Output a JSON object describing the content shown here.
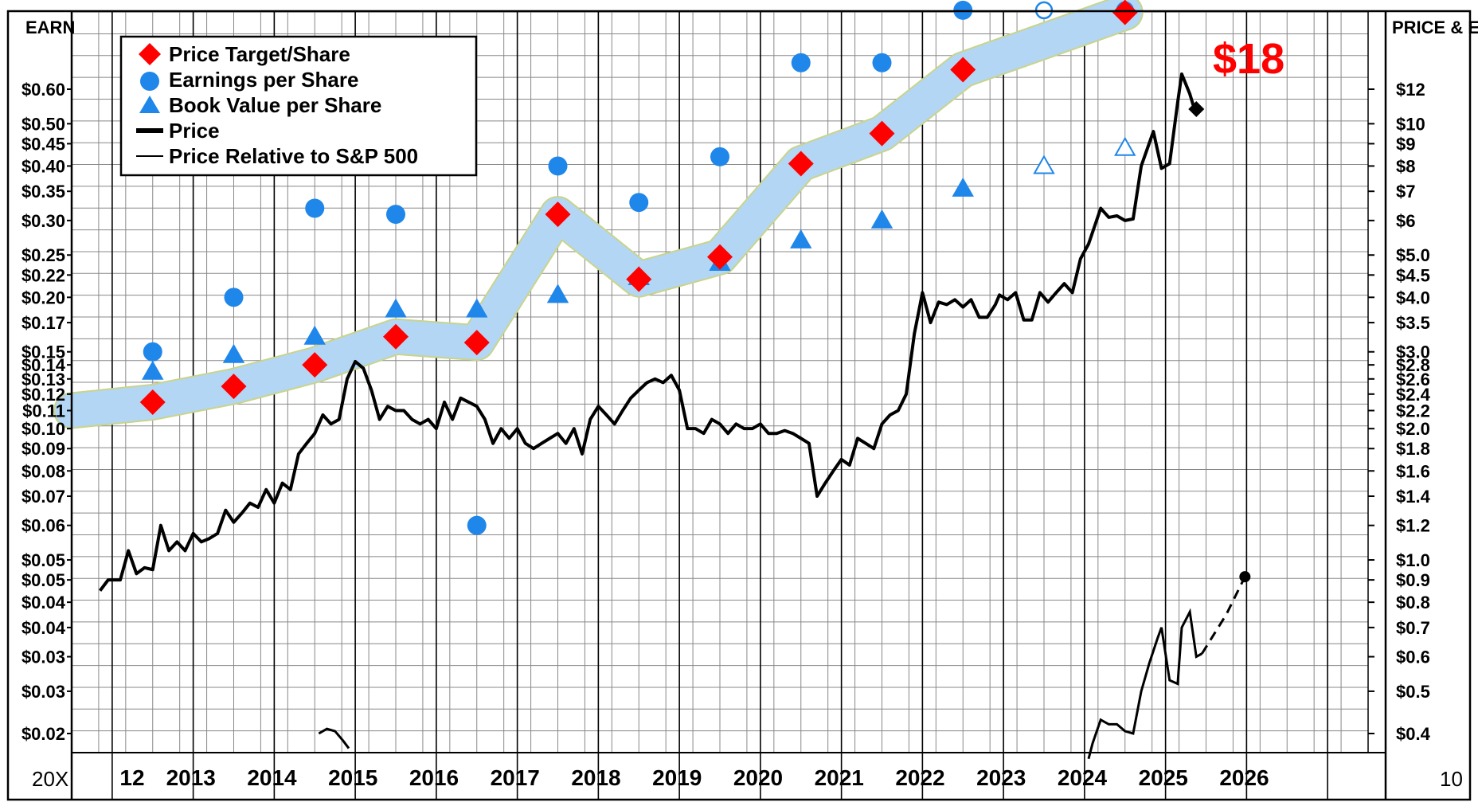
{
  "chart_data": {
    "type": "line",
    "left_axis_title": "EARN",
    "right_axis_title": "PRICE & EQUITY",
    "corner_left": "20X",
    "corner_right": "10",
    "target_label": "$18",
    "x_labels": [
      "12",
      "2013",
      "2014",
      "2015",
      "2016",
      "2017",
      "2018",
      "2019",
      "2020",
      "2021",
      "2022",
      "2023",
      "2024",
      "2025",
      "2026"
    ],
    "left_ticks": [
      {
        "label": "$0.60",
        "v": 0.6
      },
      {
        "label": "$0.50",
        "v": 0.5
      },
      {
        "label": "$0.45",
        "v": 0.45
      },
      {
        "label": "$0.40",
        "v": 0.4
      },
      {
        "label": "$0.35",
        "v": 0.35
      },
      {
        "label": "$0.30",
        "v": 0.3
      },
      {
        "label": "$0.25",
        "v": 0.25
      },
      {
        "label": "$0.22",
        "v": 0.225
      },
      {
        "label": "$0.20",
        "v": 0.2
      },
      {
        "label": "$0.17",
        "v": 0.175
      },
      {
        "label": "$0.15",
        "v": 0.15
      },
      {
        "label": "$0.14",
        "v": 0.14
      },
      {
        "label": "$0.13",
        "v": 0.13
      },
      {
        "label": "$0.12",
        "v": 0.12
      },
      {
        "label": "$0.11",
        "v": 0.11
      },
      {
        "label": "$0.10",
        "v": 0.1
      },
      {
        "label": "$0.09",
        "v": 0.09
      },
      {
        "label": "$0.08",
        "v": 0.08
      },
      {
        "label": "$0.07",
        "v": 0.07
      },
      {
        "label": "$0.06",
        "v": 0.06
      },
      {
        "label": "$0.05",
        "v": 0.05
      },
      {
        "label": "$0.05",
        "v": 0.045
      },
      {
        "label": "$0.04",
        "v": 0.04
      },
      {
        "label": "$0.04",
        "v": 0.035
      },
      {
        "label": "$0.03",
        "v": 0.03
      },
      {
        "label": "$0.03",
        "v": 0.025
      },
      {
        "label": "$0.02",
        "v": 0.02
      }
    ],
    "right_ticks": [
      {
        "label": "$12",
        "v": 12
      },
      {
        "label": "$10",
        "v": 10
      },
      {
        "label": "$9",
        "v": 9
      },
      {
        "label": "$8",
        "v": 8
      },
      {
        "label": "$7",
        "v": 7
      },
      {
        "label": "$6",
        "v": 6
      },
      {
        "label": "$5.0",
        "v": 5.0
      },
      {
        "label": "$4.5",
        "v": 4.5
      },
      {
        "label": "$4.0",
        "v": 4.0
      },
      {
        "label": "$3.5",
        "v": 3.5
      },
      {
        "label": "$3.0",
        "v": 3.0
      },
      {
        "label": "$2.8",
        "v": 2.8
      },
      {
        "label": "$2.6",
        "v": 2.6
      },
      {
        "label": "$2.4",
        "v": 2.4
      },
      {
        "label": "$2.2",
        "v": 2.2
      },
      {
        "label": "$2.0",
        "v": 2.0
      },
      {
        "label": "$1.8",
        "v": 1.8
      },
      {
        "label": "$1.6",
        "v": 1.6
      },
      {
        "label": "$1.4",
        "v": 1.4
      },
      {
        "label": "$1.2",
        "v": 1.2
      },
      {
        "label": "$1.0",
        "v": 1.0
      },
      {
        "label": "$0.9",
        "v": 0.9
      },
      {
        "label": "$0.8",
        "v": 0.8
      },
      {
        "label": "$0.7",
        "v": 0.7
      },
      {
        "label": "$0.6",
        "v": 0.6
      },
      {
        "label": "$0.5",
        "v": 0.5
      },
      {
        "label": "$0.4",
        "v": 0.4
      }
    ],
    "legend": [
      {
        "label": "Price Target/Share",
        "marker": "diamond"
      },
      {
        "label": "Earnings per Share",
        "marker": "circle"
      },
      {
        "label": "Book Value per Share",
        "marker": "triangle"
      },
      {
        "label": "Price",
        "marker": "thick-line"
      },
      {
        "label": "Price Relative to S&P 500",
        "marker": "thin-line"
      }
    ],
    "colors": {
      "target": "#ff0000",
      "eps": "#1f86ea",
      "band": "#b3d6f5",
      "band_edge": "#c9d48a",
      "price": "#000000",
      "grid": "#888888",
      "label_red": "#ff0000"
    },
    "band": [
      {
        "x": 2011.5,
        "v": 2.2
      },
      {
        "x": 2012.5,
        "v": 2.3
      },
      {
        "x": 2013.5,
        "v": 2.5
      },
      {
        "x": 2014.5,
        "v": 2.8
      },
      {
        "x": 2015.5,
        "v": 3.25
      },
      {
        "x": 2016.5,
        "v": 3.15
      },
      {
        "x": 2017.5,
        "v": 6.2
      },
      {
        "x": 2018.5,
        "v": 4.4
      },
      {
        "x": 2019.5,
        "v": 4.95
      },
      {
        "x": 2020.5,
        "v": 8.1
      },
      {
        "x": 2021.5,
        "v": 9.5
      },
      {
        "x": 2022.5,
        "v": 13.3
      },
      {
        "x": 2024.5,
        "v": 18.0
      }
    ],
    "price_target": [
      {
        "x": 2012.5,
        "v": 2.3
      },
      {
        "x": 2013.5,
        "v": 2.5
      },
      {
        "x": 2014.5,
        "v": 2.8
      },
      {
        "x": 2015.5,
        "v": 3.25
      },
      {
        "x": 2016.5,
        "v": 3.15
      },
      {
        "x": 2017.5,
        "v": 6.2
      },
      {
        "x": 2018.5,
        "v": 4.4
      },
      {
        "x": 2019.5,
        "v": 4.95
      },
      {
        "x": 2020.5,
        "v": 8.1
      },
      {
        "x": 2021.5,
        "v": 9.5
      },
      {
        "x": 2022.5,
        "v": 13.3
      },
      {
        "x": 2024.5,
        "v": 18.0
      }
    ],
    "eps": [
      {
        "x": 2012.5,
        "v": 0.15
      },
      {
        "x": 2013.5,
        "v": 0.2
      },
      {
        "x": 2014.5,
        "v": 0.32
      },
      {
        "x": 2015.5,
        "v": 0.31
      },
      {
        "x": 2016.5,
        "v": 0.06
      },
      {
        "x": 2017.5,
        "v": 0.4
      },
      {
        "x": 2018.5,
        "v": 0.33
      },
      {
        "x": 2019.5,
        "v": 0.42
      },
      {
        "x": 2020.5,
        "v": 0.69
      },
      {
        "x": 2021.5,
        "v": 0.69
      },
      {
        "x": 2022.5,
        "v": 0.91
      }
    ],
    "eps_estimates": [
      {
        "x": 2023.5,
        "v": 0.91
      },
      {
        "x": 2024.5,
        "v": 0.91
      }
    ],
    "book_value": [
      {
        "x": 2012.5,
        "v": 2.7
      },
      {
        "x": 2013.5,
        "v": 2.95
      },
      {
        "x": 2014.5,
        "v": 3.25
      },
      {
        "x": 2015.5,
        "v": 3.75
      },
      {
        "x": 2016.5,
        "v": 3.75
      },
      {
        "x": 2017.5,
        "v": 4.05
      },
      {
        "x": 2018.5,
        "v": 4.45
      },
      {
        "x": 2019.5,
        "v": 4.8
      },
      {
        "x": 2020.5,
        "v": 5.4
      },
      {
        "x": 2021.5,
        "v": 6.0
      },
      {
        "x": 2022.5,
        "v": 7.1
      }
    ],
    "book_value_estimates": [
      {
        "x": 2023.5,
        "v": 8.0
      },
      {
        "x": 2024.5,
        "v": 8.8
      }
    ],
    "price": [
      [
        2011.85,
        0.85
      ],
      [
        2011.95,
        0.9
      ],
      [
        2012.1,
        0.9
      ],
      [
        2012.2,
        1.05
      ],
      [
        2012.3,
        0.93
      ],
      [
        2012.4,
        0.96
      ],
      [
        2012.5,
        0.95
      ],
      [
        2012.6,
        1.2
      ],
      [
        2012.7,
        1.05
      ],
      [
        2012.8,
        1.1
      ],
      [
        2012.9,
        1.05
      ],
      [
        2013.0,
        1.15
      ],
      [
        2013.1,
        1.1
      ],
      [
        2013.2,
        1.12
      ],
      [
        2013.3,
        1.15
      ],
      [
        2013.4,
        1.3
      ],
      [
        2013.5,
        1.22
      ],
      [
        2013.6,
        1.28
      ],
      [
        2013.7,
        1.35
      ],
      [
        2013.8,
        1.32
      ],
      [
        2013.9,
        1.45
      ],
      [
        2014.0,
        1.35
      ],
      [
        2014.1,
        1.5
      ],
      [
        2014.2,
        1.45
      ],
      [
        2014.3,
        1.75
      ],
      [
        2014.4,
        1.85
      ],
      [
        2014.5,
        1.95
      ],
      [
        2014.6,
        2.15
      ],
      [
        2014.7,
        2.05
      ],
      [
        2014.8,
        2.1
      ],
      [
        2014.9,
        2.6
      ],
      [
        2015.0,
        2.85
      ],
      [
        2015.1,
        2.75
      ],
      [
        2015.2,
        2.45
      ],
      [
        2015.3,
        2.1
      ],
      [
        2015.4,
        2.25
      ],
      [
        2015.5,
        2.2
      ],
      [
        2015.6,
        2.2
      ],
      [
        2015.7,
        2.1
      ],
      [
        2015.8,
        2.05
      ],
      [
        2015.9,
        2.1
      ],
      [
        2016.0,
        2.0
      ],
      [
        2016.1,
        2.3
      ],
      [
        2016.2,
        2.1
      ],
      [
        2016.3,
        2.35
      ],
      [
        2016.4,
        2.3
      ],
      [
        2016.5,
        2.25
      ],
      [
        2016.6,
        2.1
      ],
      [
        2016.7,
        1.85
      ],
      [
        2016.8,
        2.0
      ],
      [
        2016.9,
        1.9
      ],
      [
        2017.0,
        2.0
      ],
      [
        2017.1,
        1.85
      ],
      [
        2017.2,
        1.8
      ],
      [
        2017.3,
        1.85
      ],
      [
        2017.4,
        1.9
      ],
      [
        2017.5,
        1.95
      ],
      [
        2017.6,
        1.85
      ],
      [
        2017.7,
        2.0
      ],
      [
        2017.8,
        1.75
      ],
      [
        2017.9,
        2.1
      ],
      [
        2018.0,
        2.25
      ],
      [
        2018.1,
        2.15
      ],
      [
        2018.2,
        2.05
      ],
      [
        2018.3,
        2.2
      ],
      [
        2018.4,
        2.35
      ],
      [
        2018.5,
        2.45
      ],
      [
        2018.6,
        2.55
      ],
      [
        2018.7,
        2.6
      ],
      [
        2018.8,
        2.55
      ],
      [
        2018.9,
        2.65
      ],
      [
        2019.0,
        2.45
      ],
      [
        2019.1,
        2.0
      ],
      [
        2019.2,
        2.0
      ],
      [
        2019.3,
        1.95
      ],
      [
        2019.4,
        2.1
      ],
      [
        2019.5,
        2.05
      ],
      [
        2019.6,
        1.95
      ],
      [
        2019.7,
        2.05
      ],
      [
        2019.8,
        2.0
      ],
      [
        2019.9,
        2.0
      ],
      [
        2020.0,
        2.05
      ],
      [
        2020.1,
        1.95
      ],
      [
        2020.2,
        1.95
      ],
      [
        2020.3,
        1.98
      ],
      [
        2020.4,
        1.95
      ],
      [
        2020.5,
        1.9
      ],
      [
        2020.6,
        1.85
      ],
      [
        2020.7,
        1.4
      ],
      [
        2020.8,
        1.5
      ],
      [
        2020.9,
        1.6
      ],
      [
        2021.0,
        1.7
      ],
      [
        2021.1,
        1.65
      ],
      [
        2021.2,
        1.9
      ],
      [
        2021.3,
        1.85
      ],
      [
        2021.4,
        1.8
      ],
      [
        2021.5,
        2.05
      ],
      [
        2021.6,
        2.15
      ],
      [
        2021.7,
        2.2
      ],
      [
        2021.8,
        2.4
      ],
      [
        2021.9,
        3.3
      ],
      [
        2022.0,
        4.1
      ],
      [
        2022.1,
        3.5
      ],
      [
        2022.2,
        3.9
      ],
      [
        2022.3,
        3.85
      ],
      [
        2022.4,
        3.95
      ],
      [
        2022.5,
        3.8
      ],
      [
        2022.6,
        3.95
      ],
      [
        2022.7,
        3.6
      ],
      [
        2022.8,
        3.6
      ],
      [
        2022.9,
        3.85
      ],
      [
        2022.95,
        4.05
      ],
      [
        2023.05,
        3.95
      ],
      [
        2023.15,
        4.1
      ],
      [
        2023.25,
        3.55
      ],
      [
        2023.35,
        3.55
      ],
      [
        2023.45,
        4.1
      ],
      [
        2023.55,
        3.9
      ],
      [
        2023.65,
        4.1
      ],
      [
        2023.75,
        4.3
      ],
      [
        2023.85,
        4.1
      ],
      [
        2023.95,
        4.9
      ],
      [
        2024.05,
        5.3
      ],
      [
        2024.2,
        6.4
      ],
      [
        2024.3,
        6.1
      ],
      [
        2024.4,
        6.15
      ],
      [
        2024.5,
        6.0
      ],
      [
        2024.6,
        6.05
      ],
      [
        2024.7,
        8.0
      ],
      [
        2024.85,
        9.6
      ],
      [
        2024.95,
        7.9
      ],
      [
        2025.05,
        8.1
      ],
      [
        2025.15,
        11.2
      ],
      [
        2025.2,
        13.0
      ],
      [
        2025.3,
        11.7
      ],
      [
        2025.35,
        10.9
      ]
    ],
    "price_last": {
      "x": 2025.38,
      "v": 10.8
    },
    "relative_segments": [
      [
        [
          2014.55,
          0.4
        ],
        [
          2014.65,
          0.41
        ],
        [
          2014.75,
          0.405
        ],
        [
          2014.85,
          0.385
        ],
        [
          2014.92,
          0.37
        ]
      ],
      [
        [
          2024.05,
          0.35
        ],
        [
          2024.1,
          0.38
        ],
        [
          2024.2,
          0.43
        ],
        [
          2024.3,
          0.42
        ],
        [
          2024.4,
          0.42
        ],
        [
          2024.5,
          0.405
        ],
        [
          2024.6,
          0.4
        ],
        [
          2024.7,
          0.5
        ],
        [
          2024.8,
          0.58
        ],
        [
          2024.9,
          0.66
        ],
        [
          2024.95,
          0.7
        ],
        [
          2025.05,
          0.53
        ],
        [
          2025.15,
          0.52
        ],
        [
          2025.2,
          0.7
        ],
        [
          2025.3,
          0.76
        ],
        [
          2025.38,
          0.6
        ],
        [
          2025.45,
          0.61
        ]
      ]
    ],
    "relative_projection": [
      [
        2025.45,
        0.61
      ],
      [
        2025.75,
        0.75
      ],
      [
        2025.98,
        0.915
      ]
    ]
  }
}
